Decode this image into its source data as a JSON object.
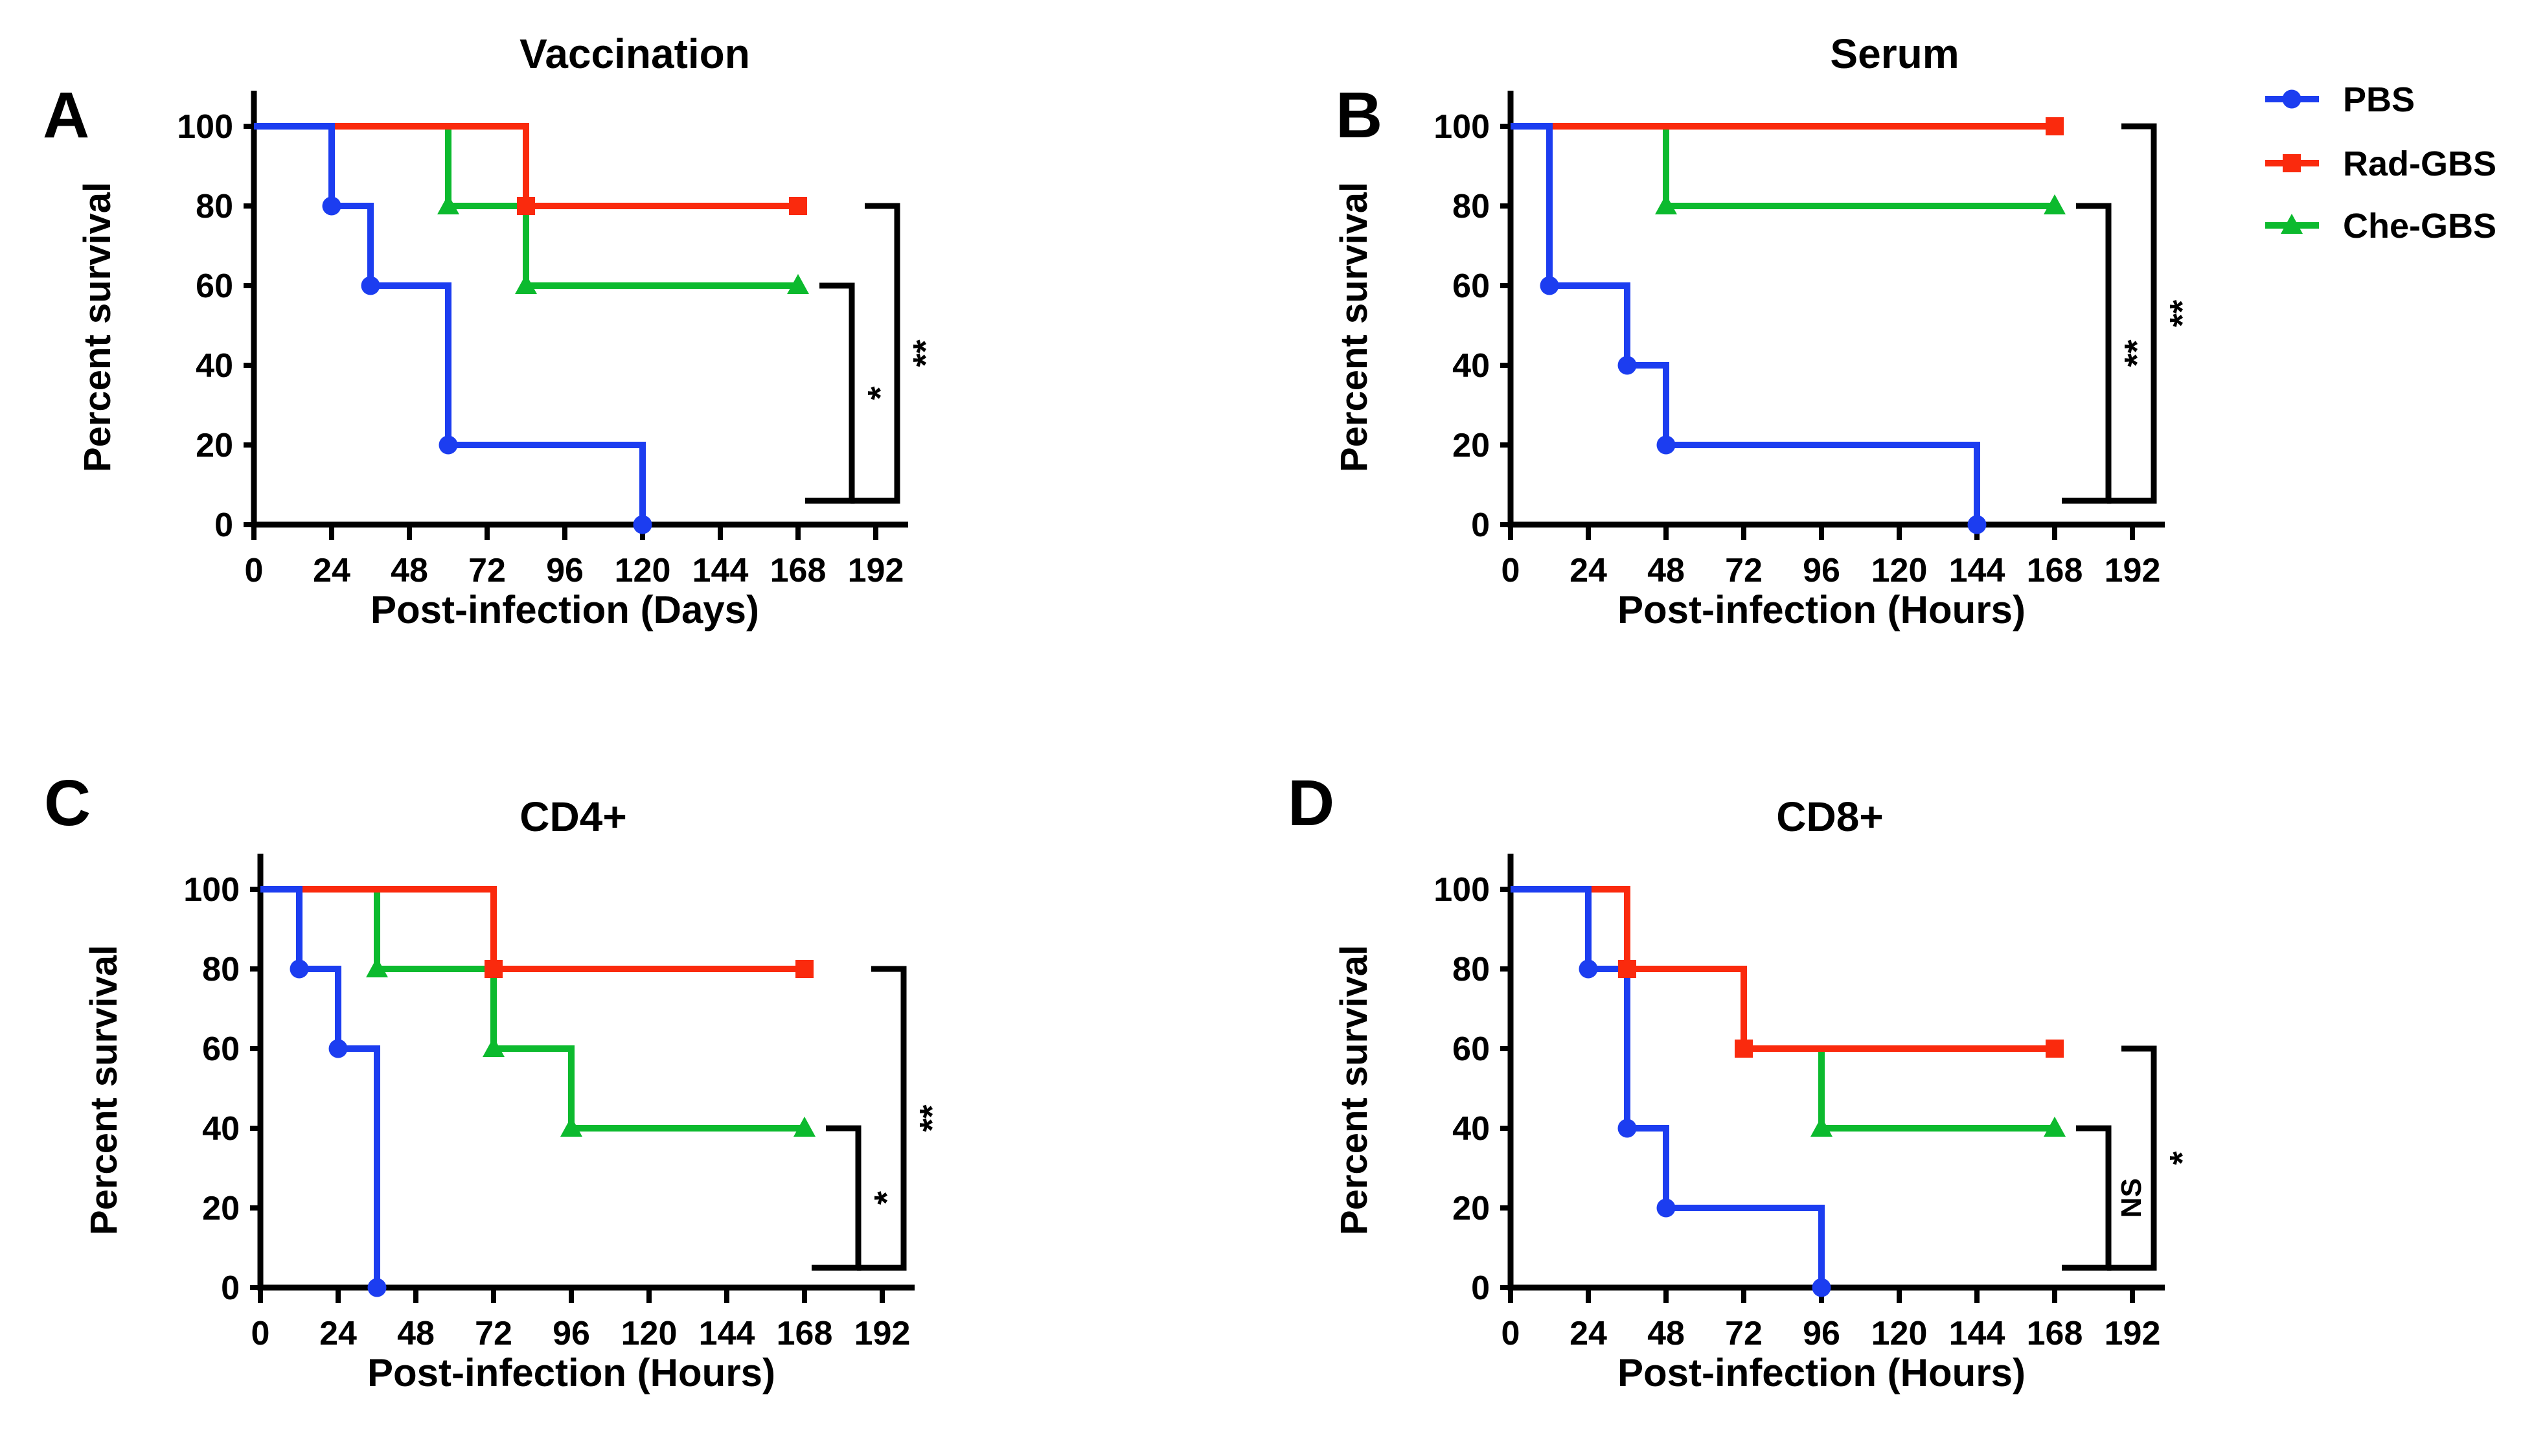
{
  "figure_colors": {
    "pbs_blue": "#1C3DF0",
    "rad_red": "#FA2A0D",
    "che_green": "#0CBA2E",
    "axis_black": "#000000",
    "background": "#FFFFFF"
  },
  "legend": {
    "items": [
      {
        "label": "PBS",
        "marker": "circle",
        "color_key": "pbs_blue"
      },
      {
        "label": "Rad-GBS",
        "marker": "square",
        "color_key": "rad_red"
      },
      {
        "label": "Che-GBS",
        "marker": "triangle",
        "color_key": "che_green"
      }
    ]
  },
  "chart_data": [
    {
      "type": "line",
      "subtype": "kaplan-meier-step",
      "panel_letter": "A",
      "title": "Vaccination",
      "xlabel": "Post-infection (Days)",
      "ylabel": "Percent survival",
      "xlim": [
        0,
        192
      ],
      "ylim": [
        0,
        100
      ],
      "x_ticks": [
        0,
        24,
        48,
        72,
        96,
        120,
        144,
        168,
        192
      ],
      "y_ticks": [
        0,
        20,
        40,
        60,
        80,
        100
      ],
      "grid": false,
      "legend_position": "outside-top-right-of-figure",
      "series": [
        {
          "name": "PBS",
          "marker": "circle",
          "color_key": "pbs_blue",
          "step_points": [
            [
              0,
              100
            ],
            [
              24,
              100
            ],
            [
              24,
              80
            ],
            [
              36,
              80
            ],
            [
              36,
              60
            ],
            [
              60,
              60
            ],
            [
              60,
              20
            ],
            [
              120,
              20
            ],
            [
              120,
              0
            ]
          ],
          "marker_points": [
            [
              24,
              80
            ],
            [
              36,
              60
            ],
            [
              60,
              20
            ],
            [
              120,
              0
            ]
          ]
        },
        {
          "name": "Rad-GBS",
          "marker": "square",
          "color_key": "rad_red",
          "step_points": [
            [
              0,
              100
            ],
            [
              84,
              100
            ],
            [
              84,
              80
            ],
            [
              168,
              80
            ]
          ],
          "marker_points": [
            [
              84,
              80
            ],
            [
              168,
              80
            ]
          ]
        },
        {
          "name": "Che-GBS",
          "marker": "triangle",
          "color_key": "che_green",
          "step_points": [
            [
              0,
              100
            ],
            [
              60,
              100
            ],
            [
              60,
              80
            ],
            [
              84,
              80
            ],
            [
              84,
              60
            ],
            [
              168,
              60
            ]
          ],
          "marker_points": [
            [
              60,
              80
            ],
            [
              84,
              60
            ],
            [
              168,
              60
            ]
          ]
        }
      ],
      "significance_brackets": [
        {
          "label": "*",
          "top_value": 60,
          "bottom_value": 6
        },
        {
          "label": "**",
          "top_value": 80,
          "bottom_value": 6
        }
      ]
    },
    {
      "type": "line",
      "subtype": "kaplan-meier-step",
      "panel_letter": "B",
      "title": "Serum",
      "xlabel": "Post-infection (Hours)",
      "ylabel": "Percent survival",
      "xlim": [
        0,
        192
      ],
      "ylim": [
        0,
        100
      ],
      "x_ticks": [
        0,
        24,
        48,
        72,
        96,
        120,
        144,
        168,
        192
      ],
      "y_ticks": [
        0,
        20,
        40,
        60,
        80,
        100
      ],
      "grid": false,
      "series": [
        {
          "name": "PBS",
          "marker": "circle",
          "color_key": "pbs_blue",
          "step_points": [
            [
              0,
              100
            ],
            [
              12,
              100
            ],
            [
              12,
              60
            ],
            [
              36,
              60
            ],
            [
              36,
              40
            ],
            [
              48,
              40
            ],
            [
              48,
              20
            ],
            [
              144,
              20
            ],
            [
              144,
              0
            ]
          ],
          "marker_points": [
            [
              12,
              60
            ],
            [
              36,
              40
            ],
            [
              48,
              20
            ],
            [
              144,
              0
            ]
          ]
        },
        {
          "name": "Rad-GBS",
          "marker": "square",
          "color_key": "rad_red",
          "step_points": [
            [
              0,
              100
            ],
            [
              168,
              100
            ]
          ],
          "marker_points": [
            [
              168,
              100
            ]
          ]
        },
        {
          "name": "Che-GBS",
          "marker": "triangle",
          "color_key": "che_green",
          "step_points": [
            [
              0,
              100
            ],
            [
              48,
              100
            ],
            [
              48,
              80
            ],
            [
              168,
              80
            ]
          ],
          "marker_points": [
            [
              48,
              80
            ],
            [
              168,
              80
            ]
          ]
        }
      ],
      "significance_brackets": [
        {
          "label": "**",
          "top_value": 80,
          "bottom_value": 6
        },
        {
          "label": "**",
          "top_value": 100,
          "bottom_value": 6
        }
      ]
    },
    {
      "type": "line",
      "subtype": "kaplan-meier-step",
      "panel_letter": "C",
      "title": "CD4+",
      "xlabel": "Post-infection (Hours)",
      "ylabel": "Percent survival",
      "xlim": [
        0,
        192
      ],
      "ylim": [
        0,
        100
      ],
      "x_ticks": [
        0,
        24,
        48,
        72,
        96,
        120,
        144,
        168,
        192
      ],
      "y_ticks": [
        0,
        20,
        40,
        60,
        80,
        100
      ],
      "grid": false,
      "series": [
        {
          "name": "PBS",
          "marker": "circle",
          "color_key": "pbs_blue",
          "step_points": [
            [
              0,
              100
            ],
            [
              12,
              100
            ],
            [
              12,
              80
            ],
            [
              24,
              80
            ],
            [
              24,
              60
            ],
            [
              36,
              60
            ],
            [
              36,
              0
            ]
          ],
          "marker_points": [
            [
              12,
              80
            ],
            [
              24,
              60
            ],
            [
              36,
              0
            ]
          ]
        },
        {
          "name": "Rad-GBS",
          "marker": "square",
          "color_key": "rad_red",
          "step_points": [
            [
              0,
              100
            ],
            [
              72,
              100
            ],
            [
              72,
              80
            ],
            [
              168,
              80
            ]
          ],
          "marker_points": [
            [
              72,
              80
            ],
            [
              168,
              80
            ]
          ]
        },
        {
          "name": "Che-GBS",
          "marker": "triangle",
          "color_key": "che_green",
          "step_points": [
            [
              0,
              100
            ],
            [
              36,
              100
            ],
            [
              36,
              80
            ],
            [
              72,
              80
            ],
            [
              72,
              60
            ],
            [
              96,
              60
            ],
            [
              96,
              40
            ],
            [
              168,
              40
            ]
          ],
          "marker_points": [
            [
              36,
              80
            ],
            [
              72,
              60
            ],
            [
              96,
              40
            ],
            [
              168,
              40
            ]
          ]
        }
      ],
      "significance_brackets": [
        {
          "label": "*",
          "top_value": 40,
          "bottom_value": 5
        },
        {
          "label": "**",
          "top_value": 80,
          "bottom_value": 5
        }
      ]
    },
    {
      "type": "line",
      "subtype": "kaplan-meier-step",
      "panel_letter": "D",
      "title": "CD8+",
      "xlabel": "Post-infection (Hours)",
      "ylabel": "Percent survival",
      "xlim": [
        0,
        192
      ],
      "ylim": [
        0,
        100
      ],
      "x_ticks": [
        0,
        24,
        48,
        72,
        96,
        120,
        144,
        168,
        192
      ],
      "y_ticks": [
        0,
        20,
        40,
        60,
        80,
        100
      ],
      "grid": false,
      "series": [
        {
          "name": "PBS",
          "marker": "circle",
          "color_key": "pbs_blue",
          "step_points": [
            [
              0,
              100
            ],
            [
              24,
              100
            ],
            [
              24,
              80
            ],
            [
              36,
              80
            ],
            [
              36,
              40
            ],
            [
              48,
              40
            ],
            [
              48,
              20
            ],
            [
              96,
              20
            ],
            [
              96,
              0
            ]
          ],
          "marker_points": [
            [
              24,
              80
            ],
            [
              36,
              40
            ],
            [
              48,
              20
            ],
            [
              96,
              0
            ]
          ]
        },
        {
          "name": "Rad-GBS",
          "marker": "square",
          "color_key": "rad_red",
          "step_points": [
            [
              0,
              100
            ],
            [
              36,
              100
            ],
            [
              36,
              80
            ],
            [
              72,
              80
            ],
            [
              72,
              60
            ],
            [
              168,
              60
            ]
          ],
          "marker_points": [
            [
              36,
              80
            ],
            [
              72,
              60
            ],
            [
              168,
              60
            ]
          ]
        },
        {
          "name": "Che-GBS",
          "marker": "triangle",
          "color_key": "che_green",
          "step_points": [
            [
              0,
              100
            ],
            [
              36,
              100
            ],
            [
              36,
              80
            ],
            [
              72,
              80
            ],
            [
              72,
              60
            ],
            [
              96,
              60
            ],
            [
              96,
              40
            ],
            [
              168,
              40
            ]
          ],
          "marker_points": [
            [
              96,
              40
            ],
            [
              168,
              40
            ]
          ]
        }
      ],
      "significance_brackets": [
        {
          "label": "NS",
          "top_value": 40,
          "bottom_value": 5
        },
        {
          "label": "*",
          "top_value": 60,
          "bottom_value": 5
        }
      ]
    }
  ]
}
